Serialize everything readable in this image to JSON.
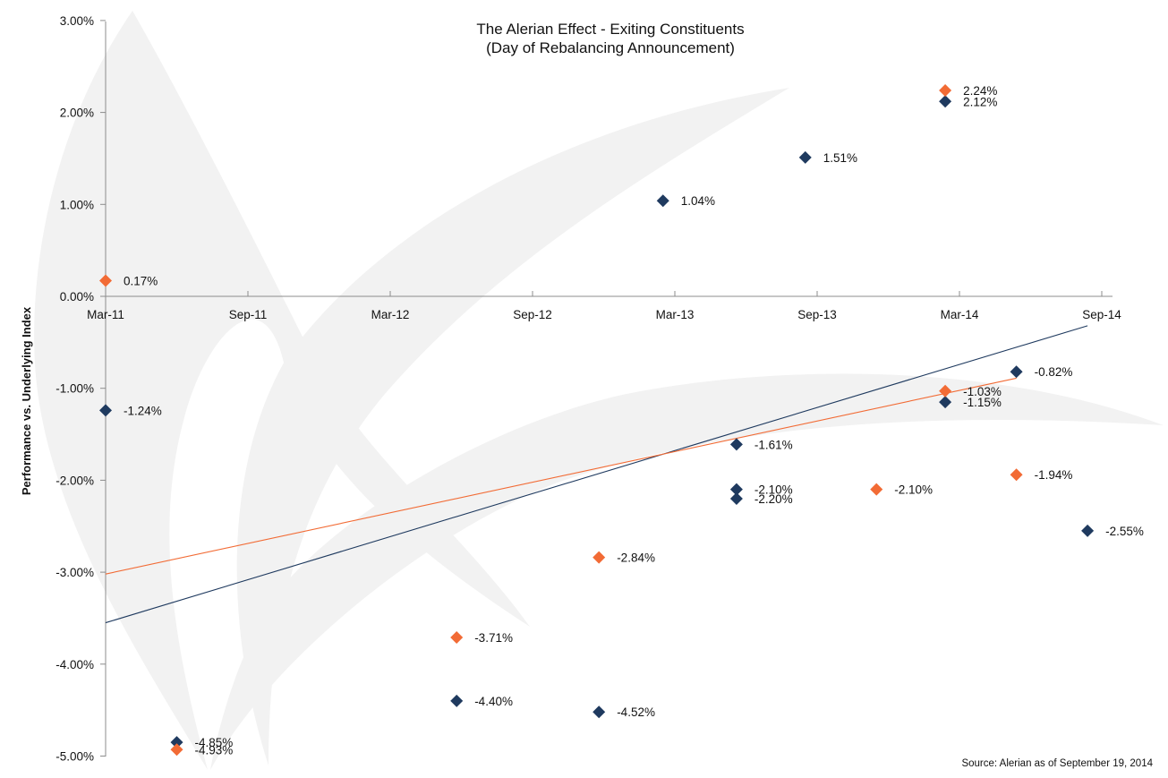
{
  "chart_data": {
    "type": "scatter",
    "title": "The Alerian Effect - Exiting Constituents",
    "subtitle": "(Day of Rebalancing Announcement)",
    "xlabel": "",
    "ylabel": "Performance vs. Underlying Index",
    "x_unit": "months since Mar-11",
    "x_ticks": [
      {
        "label": "Mar-11",
        "value": 0
      },
      {
        "label": "Sep-11",
        "value": 6
      },
      {
        "label": "Mar-12",
        "value": 12
      },
      {
        "label": "Sep-12",
        "value": 18
      },
      {
        "label": "Mar-13",
        "value": 24
      },
      {
        "label": "Sep-13",
        "value": 30
      },
      {
        "label": "Mar-14",
        "value": 36
      },
      {
        "label": "Sep-14",
        "value": 42
      }
    ],
    "xlim": [
      0,
      42.8
    ],
    "y_ticks": [
      {
        "label": "3.00%",
        "value": 3
      },
      {
        "label": "2.00%",
        "value": 2
      },
      {
        "label": "1.00%",
        "value": 1
      },
      {
        "label": "0.00%",
        "value": 0
      },
      {
        "label": "-1.00%",
        "value": -1
      },
      {
        "label": "-2.00%",
        "value": -2
      },
      {
        "label": "-3.00%",
        "value": -3
      },
      {
        "label": "-4.00%",
        "value": -4
      },
      {
        "label": "-5.00%",
        "value": -5
      }
    ],
    "ylim": [
      -5,
      3
    ],
    "grid": false,
    "legend": "none",
    "series": [
      {
        "name": "navy-series",
        "color": "#1f3a5f",
        "points": [
          {
            "x": 0,
            "y": -1.24,
            "label": "-1.24%"
          },
          {
            "x": 3,
            "y": -4.85,
            "label": "-4.85%"
          },
          {
            "x": 14.8,
            "y": -4.4,
            "label": "-4.40%"
          },
          {
            "x": 20.8,
            "y": -4.52,
            "label": "-4.52%"
          },
          {
            "x": 23.5,
            "y": 1.04,
            "label": "1.04%"
          },
          {
            "x": 26.6,
            "y": -1.61,
            "label": "-1.61%"
          },
          {
            "x": 26.6,
            "y": -2.1,
            "label": "-2.10%"
          },
          {
            "x": 26.6,
            "y": -2.2,
            "label": "-2.20%"
          },
          {
            "x": 29.5,
            "y": 1.51,
            "label": "1.51%"
          },
          {
            "x": 35.4,
            "y": 2.12,
            "label": "2.12%"
          },
          {
            "x": 35.4,
            "y": -1.15,
            "label": "-1.15%"
          },
          {
            "x": 38.4,
            "y": -0.82,
            "label": "-0.82%"
          },
          {
            "x": 41.4,
            "y": -2.55,
            "label": "-2.55%"
          }
        ],
        "trendline": {
          "x0": 0,
          "y0": -3.55,
          "x1": 41.4,
          "y1": -0.32
        }
      },
      {
        "name": "orange-series",
        "color": "#f26b35",
        "points": [
          {
            "x": 0,
            "y": 0.17,
            "label": "0.17%"
          },
          {
            "x": 3,
            "y": -4.93,
            "label": "-4.93%"
          },
          {
            "x": 14.8,
            "y": -3.71,
            "label": "-3.71%"
          },
          {
            "x": 20.8,
            "y": -2.84,
            "label": "-2.84%"
          },
          {
            "x": 32.5,
            "y": -2.1,
            "label": "-2.10%"
          },
          {
            "x": 35.4,
            "y": 2.24,
            "label": "2.24%"
          },
          {
            "x": 35.4,
            "y": -1.03,
            "label": "-1.03%"
          },
          {
            "x": 38.4,
            "y": -1.94,
            "label": "-1.94%"
          }
        ],
        "trendline": {
          "x0": 0,
          "y0": -3.02,
          "x1": 38.4,
          "y1": -0.89
        }
      }
    ],
    "source_note": "Source: Alerian as of September 19, 2014"
  },
  "colors": {
    "axis": "#8c8c8c",
    "watermark": "#f2f2f2"
  }
}
